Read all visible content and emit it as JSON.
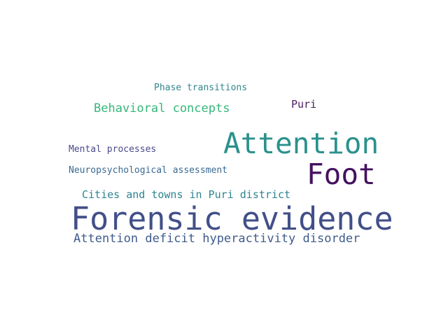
{
  "words": {
    "phase_transitions": {
      "text": "Phase transitions",
      "color": "#33878f"
    },
    "behavioral_concepts": {
      "text": "Behavioral concepts",
      "color": "#35b779"
    },
    "puri": {
      "text": "Puri",
      "color": "#4a1e63"
    },
    "attention": {
      "text": "Attention",
      "color": "#2a918c"
    },
    "mental_processes": {
      "text": "Mental processes",
      "color": "#4a4a8c"
    },
    "foot": {
      "text": "Foot",
      "color": "#45125f"
    },
    "neuropsychological_assessment": {
      "text": "Neuropsychological assessment",
      "color": "#3a6a92"
    },
    "cities_and_towns": {
      "text": "Cities and towns in Puri district",
      "color": "#2f8491"
    },
    "forensic_evidence": {
      "text": "Forensic evidence",
      "color": "#424f88"
    },
    "adhd": {
      "text": "Attention deficit hyperactivity disorder",
      "color": "#3f5b8c"
    }
  }
}
